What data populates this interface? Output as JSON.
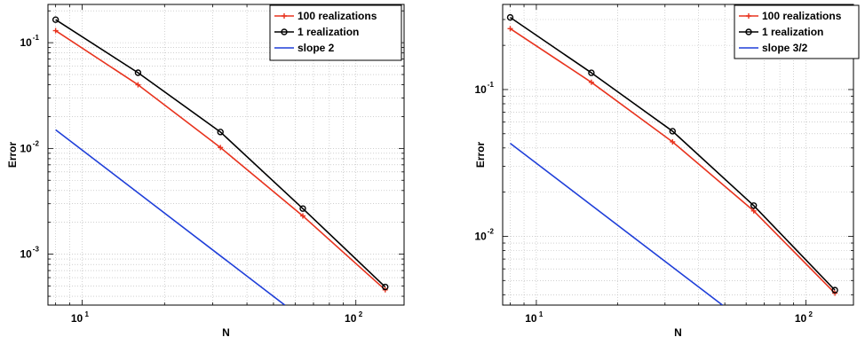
{
  "chart_data": [
    {
      "type": "line",
      "xlabel": "N",
      "ylabel": "Error",
      "xscale": "log",
      "yscale": "log",
      "xlim": [
        7.5,
        150
      ],
      "ylim": [
        0.00033,
        0.23
      ],
      "grid": true,
      "legend_position": "top-right",
      "xticks": [
        {
          "base": "10",
          "exp": "1",
          "value": 10
        },
        {
          "base": "10",
          "exp": "2",
          "value": 100
        }
      ],
      "yticks": [
        {
          "base": "10",
          "exp": "-3",
          "value": 0.001
        },
        {
          "base": "10",
          "exp": "-2",
          "value": 0.01
        },
        {
          "base": "10",
          "exp": "-1",
          "value": 0.1
        }
      ],
      "series": [
        {
          "name": "100 realizations",
          "color": "#e8331e",
          "marker": "plus",
          "x": [
            8,
            16,
            32,
            64,
            128
          ],
          "y": [
            0.13,
            0.04,
            0.0102,
            0.0023,
            0.00046
          ]
        },
        {
          "name": "1 realization",
          "color": "#000000",
          "marker": "circle",
          "x": [
            8,
            16,
            32,
            64,
            128
          ],
          "y": [
            0.165,
            0.052,
            0.0143,
            0.0027,
            0.00049
          ]
        },
        {
          "name": "slope 2",
          "color": "#1f3fd9",
          "marker": "none",
          "x": [
            8,
            55
          ],
          "y": [
            0.015,
            0.00033
          ]
        }
      ]
    },
    {
      "type": "line",
      "xlabel": "N",
      "ylabel": "Error",
      "xscale": "log",
      "yscale": "log",
      "xlim": [
        7.5,
        150
      ],
      "ylim": [
        0.0034,
        0.38
      ],
      "grid": true,
      "legend_position": "top-right",
      "xticks": [
        {
          "base": "10",
          "exp": "1",
          "value": 10
        },
        {
          "base": "10",
          "exp": "2",
          "value": 100
        }
      ],
      "yticks": [
        {
          "base": "10",
          "exp": "-2",
          "value": 0.01
        },
        {
          "base": "10",
          "exp": "-1",
          "value": 0.1
        }
      ],
      "series": [
        {
          "name": "100 realizations",
          "color": "#e8331e",
          "marker": "plus",
          "x": [
            8,
            16,
            32,
            64,
            128
          ],
          "y": [
            0.26,
            0.112,
            0.044,
            0.0149,
            0.0041
          ]
        },
        {
          "name": "1 realization",
          "color": "#000000",
          "marker": "circle",
          "x": [
            8,
            16,
            32,
            64,
            128
          ],
          "y": [
            0.31,
            0.13,
            0.052,
            0.0162,
            0.0043
          ]
        },
        {
          "name": "slope 3/2",
          "color": "#1f3fd9",
          "marker": "none",
          "x": [
            8,
            49
          ],
          "y": [
            0.043,
            0.0034
          ]
        }
      ]
    }
  ]
}
